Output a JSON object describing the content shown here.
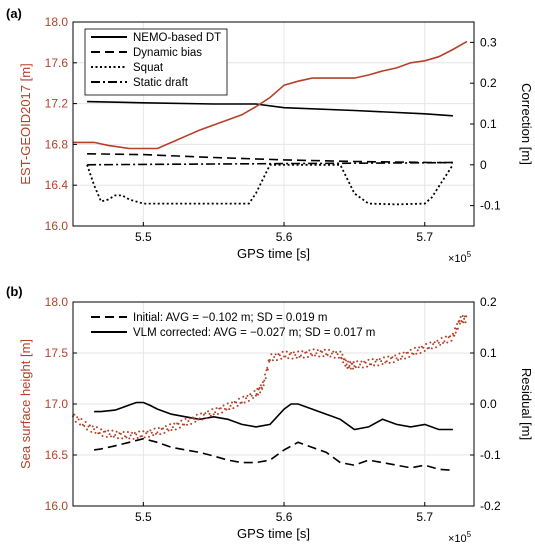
{
  "colors": {
    "red": "#b5412a",
    "black": "#000000",
    "grid": "#e6e6e6"
  },
  "chart_data": [
    {
      "panel_label": "(a)",
      "type": "line",
      "xlabel": "GPS time [s]",
      "x_exponent_label": "×10",
      "x_exponent_power": "5",
      "xlim": [
        5.45,
        5.735
      ],
      "x_ticks": [
        5.5,
        5.6,
        5.7
      ],
      "x_tick_labels": [
        "5.5",
        "5.6",
        "5.7"
      ],
      "ylabel_left": "EST-GEOID2017 [m]",
      "ylim_left": [
        16.0,
        18.0
      ],
      "y_ticks_left": [
        16.0,
        16.4,
        16.8,
        17.2,
        17.6,
        18.0
      ],
      "y_tick_labels_left": [
        "16.0",
        "16.4",
        "16.8",
        "17.2",
        "17.6",
        "18.0"
      ],
      "ylabel_right": "Correction [m]",
      "ylim_right": [
        -0.15,
        0.35
      ],
      "y_ticks_right": [
        -0.1,
        0,
        0.1,
        0.2,
        0.3
      ],
      "y_tick_labels_right": [
        "-0.1",
        "0",
        "0.1",
        "0.2",
        "0.3"
      ],
      "grid": true,
      "legend_position": "top-left",
      "series": [
        {
          "name": "NEMO-based DT",
          "style": "solid",
          "axis": "right",
          "x": [
            5.46,
            5.5,
            5.55,
            5.58,
            5.6,
            5.65,
            5.7,
            5.72
          ],
          "y": [
            0.155,
            0.152,
            0.149,
            0.149,
            0.14,
            0.133,
            0.125,
            0.12
          ]
        },
        {
          "name": "Dynamic bias",
          "style": "dashed",
          "axis": "right",
          "x": [
            5.46,
            5.5,
            5.55,
            5.6,
            5.65,
            5.7,
            5.72
          ],
          "y": [
            0.027,
            0.025,
            0.018,
            0.012,
            0.008,
            0.006,
            0.005
          ]
        },
        {
          "name": "Squat",
          "style": "dotted",
          "axis": "right",
          "x": [
            5.46,
            5.465,
            5.47,
            5.475,
            5.48,
            5.485,
            5.49,
            5.5,
            5.55,
            5.575,
            5.58,
            5.59,
            5.64,
            5.65,
            5.66,
            5.68,
            5.7,
            5.705,
            5.72
          ],
          "y": [
            0.0,
            -0.05,
            -0.09,
            -0.085,
            -0.075,
            -0.075,
            -0.085,
            -0.095,
            -0.095,
            -0.095,
            -0.07,
            0.0,
            0.0,
            -0.07,
            -0.095,
            -0.097,
            -0.095,
            -0.08,
            0.0
          ]
        },
        {
          "name": "Static draft",
          "style": "dashdot",
          "axis": "right",
          "x": [
            5.46,
            5.5,
            5.55,
            5.6,
            5.65,
            5.7,
            5.72
          ],
          "y": [
            0.0,
            0.001,
            0.002,
            0.003,
            0.004,
            0.005,
            0.006
          ]
        },
        {
          "name": "",
          "style": "solid-red",
          "axis": "left",
          "x": [
            5.45,
            5.465,
            5.475,
            5.48,
            5.49,
            5.5,
            5.51,
            5.52,
            5.53,
            5.54,
            5.55,
            5.56,
            5.57,
            5.58,
            5.59,
            5.6,
            5.61,
            5.62,
            5.63,
            5.64,
            5.65,
            5.66,
            5.67,
            5.68,
            5.69,
            5.7,
            5.71,
            5.72,
            5.73
          ],
          "y": [
            16.82,
            16.82,
            16.79,
            16.78,
            16.76,
            16.76,
            16.76,
            16.82,
            16.88,
            16.94,
            16.99,
            17.04,
            17.09,
            17.17,
            17.26,
            17.38,
            17.42,
            17.45,
            17.45,
            17.45,
            17.45,
            17.48,
            17.52,
            17.55,
            17.6,
            17.62,
            17.66,
            17.73,
            17.81
          ]
        }
      ]
    },
    {
      "panel_label": "(b)",
      "type": "line",
      "xlabel": "GPS time [s]",
      "x_exponent_label": "×10",
      "x_exponent_power": "5",
      "xlim": [
        5.45,
        5.735
      ],
      "x_ticks": [
        5.5,
        5.6,
        5.7
      ],
      "x_tick_labels": [
        "5.5",
        "5.6",
        "5.7"
      ],
      "ylabel_left": "Sea surface height [m]",
      "ylim_left": [
        16.0,
        18.0
      ],
      "y_ticks_left": [
        16.0,
        16.5,
        17.0,
        17.5,
        18.0
      ],
      "y_tick_labels_left": [
        "16.0",
        "16.5",
        "17.0",
        "17.5",
        "18.0"
      ],
      "ylabel_right": "Residual [m]",
      "ylim_right": [
        -0.2,
        0.2
      ],
      "y_ticks_right": [
        -0.2,
        -0.1,
        0,
        0.1,
        0.2
      ],
      "y_tick_labels_right": [
        "-0.2",
        "-0.1",
        "0.0",
        "0.1",
        "0.2"
      ],
      "grid": true,
      "legend_position": "top-left",
      "series": [
        {
          "name": "Initial: AVG = −0.102 m; SD = 0.019 m",
          "style": "dashed",
          "axis": "right",
          "x": [
            5.465,
            5.47,
            5.48,
            5.49,
            5.5,
            5.51,
            5.52,
            5.53,
            5.54,
            5.55,
            5.56,
            5.57,
            5.58,
            5.59,
            5.6,
            5.61,
            5.62,
            5.63,
            5.64,
            5.65,
            5.66,
            5.67,
            5.68,
            5.69,
            5.7,
            5.71,
            5.72
          ],
          "y": [
            -0.09,
            -0.088,
            -0.082,
            -0.075,
            -0.068,
            -0.075,
            -0.085,
            -0.09,
            -0.095,
            -0.102,
            -0.11,
            -0.115,
            -0.115,
            -0.11,
            -0.09,
            -0.075,
            -0.085,
            -0.095,
            -0.115,
            -0.12,
            -0.11,
            -0.115,
            -0.12,
            -0.125,
            -0.12,
            -0.128,
            -0.13
          ]
        },
        {
          "name": "VLM corrected: AVG = −0.027 m; SD = 0.017 m",
          "style": "solid",
          "axis": "right",
          "x": [
            5.465,
            5.47,
            5.48,
            5.49,
            5.495,
            5.5,
            5.505,
            5.51,
            5.52,
            5.53,
            5.54,
            5.55,
            5.56,
            5.57,
            5.58,
            5.59,
            5.6,
            5.605,
            5.61,
            5.62,
            5.63,
            5.64,
            5.65,
            5.66,
            5.67,
            5.68,
            5.69,
            5.7,
            5.71,
            5.72
          ],
          "y": [
            -0.015,
            -0.015,
            -0.012,
            -0.002,
            0.003,
            0.003,
            -0.003,
            -0.01,
            -0.02,
            -0.025,
            -0.03,
            -0.025,
            -0.03,
            -0.04,
            -0.045,
            -0.04,
            -0.01,
            0.0,
            0.0,
            -0.01,
            -0.02,
            -0.03,
            -0.05,
            -0.045,
            -0.03,
            -0.04,
            -0.045,
            -0.04,
            -0.05,
            -0.05
          ]
        },
        {
          "name": "",
          "style": "red-dots",
          "axis": "left",
          "x": [
            5.45,
            5.46,
            5.47,
            5.48,
            5.49,
            5.5,
            5.51,
            5.52,
            5.53,
            5.54,
            5.55,
            5.56,
            5.57,
            5.58,
            5.585,
            5.59,
            5.6,
            5.61,
            5.62,
            5.63,
            5.64,
            5.645,
            5.65,
            5.66,
            5.67,
            5.68,
            5.69,
            5.7,
            5.71,
            5.72,
            5.725,
            5.73
          ],
          "y": [
            16.88,
            16.78,
            16.72,
            16.7,
            16.69,
            16.7,
            16.73,
            16.77,
            16.82,
            16.87,
            16.92,
            16.97,
            17.03,
            17.1,
            17.18,
            17.45,
            17.48,
            17.48,
            17.5,
            17.5,
            17.48,
            17.38,
            17.38,
            17.4,
            17.42,
            17.45,
            17.5,
            17.55,
            17.6,
            17.66,
            17.82,
            17.84
          ]
        }
      ]
    }
  ]
}
